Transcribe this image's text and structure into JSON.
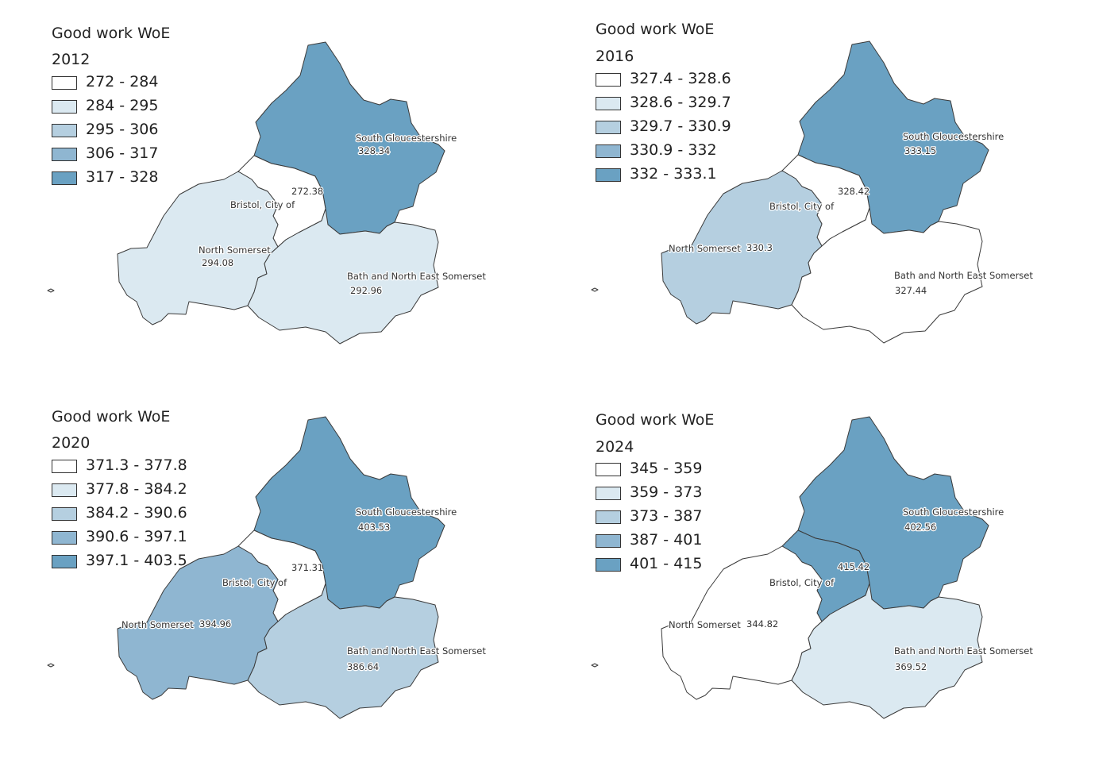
{
  "region_names": [
    "South Gloucestershire",
    "Bristol, City of",
    "North Somerset",
    "Bath and North East Somerset"
  ],
  "panels": [
    {
      "title": "Good work WoE",
      "year": "2012",
      "legend": [
        {
          "label": "272 - 284",
          "color": "#ffffff"
        },
        {
          "label": "284 - 295",
          "color": "#dbe9f1"
        },
        {
          "label": "295 - 306",
          "color": "#b5cfe0"
        },
        {
          "label": "306 - 317",
          "color": "#8fb6d1"
        },
        {
          "label": "317 - 328",
          "color": "#6aa1c2"
        }
      ],
      "values": {
        "sg": "328.34",
        "bris": "272.38",
        "ns": "294.08",
        "banes": "292.96"
      },
      "colors": {
        "sg": "#6aa1c2",
        "bris": "#ffffff",
        "ns": "#dbe9f1",
        "banes": "#dbe9f1"
      }
    },
    {
      "title": "Good work WoE",
      "year": "2016",
      "legend": [
        {
          "label": "327.4 - 328.6",
          "color": "#ffffff"
        },
        {
          "label": "328.6 - 329.7",
          "color": "#dbe9f1"
        },
        {
          "label": "329.7 - 330.9",
          "color": "#b5cfe0"
        },
        {
          "label": "330.9 - 332",
          "color": "#8fb6d1"
        },
        {
          "label": "332 - 333.1",
          "color": "#6aa1c2"
        }
      ],
      "values": {
        "sg": "333.15",
        "bris": "328.42",
        "ns": "330.3",
        "banes": "327.44"
      },
      "colors": {
        "sg": "#6aa1c2",
        "bris": "#ffffff",
        "ns": "#b5cfe0",
        "banes": "#ffffff"
      }
    },
    {
      "title": "Good work WoE",
      "year": "2020",
      "legend": [
        {
          "label": "371.3 - 377.8",
          "color": "#ffffff"
        },
        {
          "label": "377.8 - 384.2",
          "color": "#dbe9f1"
        },
        {
          "label": "384.2 - 390.6",
          "color": "#b5cfe0"
        },
        {
          "label": "390.6 - 397.1",
          "color": "#8fb6d1"
        },
        {
          "label": "397.1 - 403.5",
          "color": "#6aa1c2"
        }
      ],
      "values": {
        "sg": "403.53",
        "bris": "371.31",
        "ns": "394.96",
        "banes": "386.64"
      },
      "colors": {
        "sg": "#6aa1c2",
        "bris": "#ffffff",
        "ns": "#8fb6d1",
        "banes": "#b5cfe0"
      }
    },
    {
      "title": "Good work WoE",
      "year": "2024",
      "legend": [
        {
          "label": "345 - 359",
          "color": "#ffffff"
        },
        {
          "label": "359 - 373",
          "color": "#dbe9f1"
        },
        {
          "label": "373 - 387",
          "color": "#b5cfe0"
        },
        {
          "label": "387 - 401",
          "color": "#8fb6d1"
        },
        {
          "label": "401 - 415",
          "color": "#6aa1c2"
        }
      ],
      "values": {
        "sg": "402.56",
        "bris": "415.42",
        "ns": "344.82",
        "banes": "369.52"
      },
      "colors": {
        "sg": "#6aa1c2",
        "bris": "#6aa1c2",
        "ns": "#ffffff",
        "banes": "#dbe9f1"
      }
    }
  ]
}
